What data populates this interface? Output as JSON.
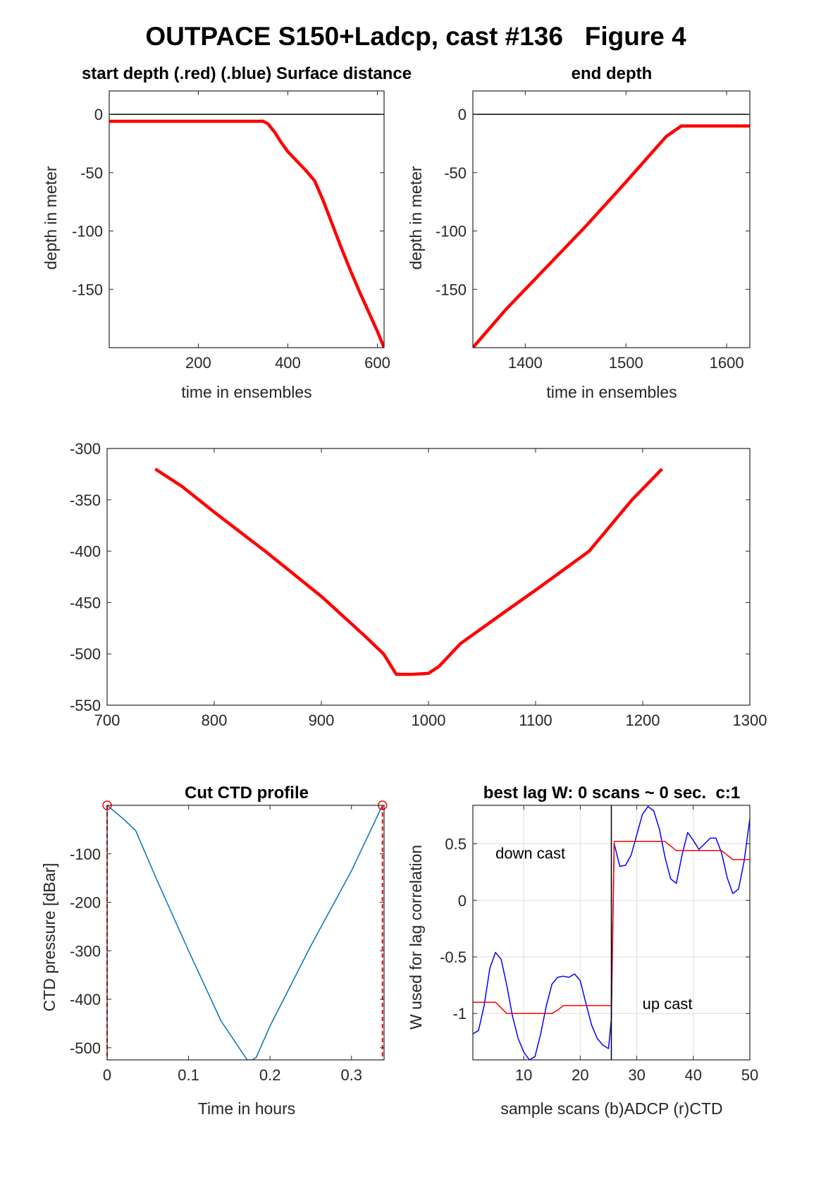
{
  "figure_title": "OUTPACE S150+Ladcp, cast #136   Figure 4",
  "chart_data": [
    {
      "id": "start",
      "type": "line",
      "title": "start depth (.red) (.blue) Surface distance",
      "xlabel": "time in ensembles",
      "ylabel": "depth in meter",
      "xlim": [
        1,
        615
      ],
      "ylim": [
        -200,
        20
      ],
      "xticks": [
        200,
        400,
        600
      ],
      "yticks": [
        0,
        -50,
        -100,
        -150
      ],
      "grid": false,
      "hlines": [
        {
          "y": 0,
          "color": "#000000"
        }
      ],
      "series": [
        {
          "color": "#ff0000",
          "x": [
            1,
            100,
            200,
            300,
            345,
            355,
            370,
            385,
            400,
            420,
            440,
            460,
            480,
            500,
            520,
            540,
            560,
            580,
            600,
            615
          ],
          "y": [
            -6,
            -6,
            -6,
            -6,
            -6,
            -8,
            -15,
            -24,
            -32,
            -40,
            -48,
            -57,
            -75,
            -95,
            -115,
            -134,
            -152,
            -169,
            -186,
            -200
          ]
        }
      ]
    },
    {
      "id": "end",
      "type": "line",
      "title": "end depth",
      "xlabel": "time in ensembles",
      "ylabel": "depth in meter",
      "xlim": [
        1348,
        1623
      ],
      "ylim": [
        -200,
        20
      ],
      "xticks": [
        1400,
        1500,
        1600
      ],
      "yticks": [
        0,
        -50,
        -100,
        -150
      ],
      "grid": false,
      "hlines": [
        {
          "y": 0,
          "color": "#000000"
        }
      ],
      "series": [
        {
          "color": "#ff0000",
          "x": [
            1348,
            1380,
            1420,
            1460,
            1500,
            1540,
            1555,
            1580,
            1623
          ],
          "y": [
            -200,
            -168,
            -132,
            -96,
            -58,
            -19,
            -10,
            -10,
            -10
          ]
        }
      ]
    },
    {
      "id": "middle",
      "type": "line",
      "title": "",
      "xlabel": "",
      "ylabel": "",
      "xlim": [
        700,
        1300
      ],
      "ylim": [
        -550,
        -300
      ],
      "xticks": [
        700,
        800,
        900,
        1000,
        1100,
        1200,
        1300
      ],
      "yticks": [
        -300,
        -350,
        -400,
        -450,
        -500,
        -550
      ],
      "grid": false,
      "series": [
        {
          "color": "#ff0000",
          "x": [
            745,
            770,
            800,
            850,
            900,
            940,
            958,
            970,
            985,
            1000,
            1010,
            1030,
            1070,
            1100,
            1150,
            1190,
            1218
          ],
          "y": [
            -320,
            -337,
            -362,
            -402,
            -444,
            -482,
            -500,
            -520,
            -520,
            -519,
            -512,
            -490,
            -460,
            -438,
            -400,
            -350,
            -320
          ]
        }
      ]
    },
    {
      "id": "ctd",
      "type": "line",
      "title": "Cut CTD profile",
      "xlabel": "Time in hours",
      "ylabel": "CTD pressure [dBar]",
      "xlim": [
        0,
        0.34
      ],
      "ylim": [
        -525,
        0
      ],
      "xticks": [
        0,
        0.1,
        0.2,
        0.3
      ],
      "yticks": [
        -100,
        -200,
        -300,
        -400,
        -500
      ],
      "grid": false,
      "series": [
        {
          "color": "#0072bd",
          "x": [
            0,
            0.02,
            0.035,
            0.06,
            0.1,
            0.14,
            0.172,
            0.178,
            0.183,
            0.2,
            0.25,
            0.3,
            0.338
          ],
          "y": [
            0,
            -28,
            -52,
            -150,
            -300,
            -445,
            -525,
            -525,
            -520,
            -455,
            -290,
            -135,
            0
          ]
        }
      ],
      "markers": [
        {
          "x": 0,
          "y": 0,
          "shape": "circle",
          "color": "#ff0000"
        },
        {
          "x": 0.338,
          "y": 0,
          "shape": "circle",
          "color": "#ff0000"
        }
      ],
      "vlines": [
        {
          "x": 0,
          "style": "dashed",
          "color": "#ff0000"
        },
        {
          "x": 0.338,
          "style": "dashed",
          "color": "#ff0000"
        }
      ]
    },
    {
      "id": "lag",
      "type": "line",
      "title": "best lag W: 0 scans ~ 0 sec.  c:1",
      "xlabel": "sample scans (b)ADCP (r)CTD",
      "ylabel": "W used for lag correlation",
      "xlim": [
        1,
        50
      ],
      "ylim": [
        -1.41,
        0.84
      ],
      "xticks": [
        10,
        20,
        30,
        40,
        50
      ],
      "yticks": [
        0.5,
        0,
        -0.5,
        -1
      ],
      "grid": true,
      "vlines": [
        {
          "x": 25.5,
          "style": "solid",
          "color": "#000000"
        }
      ],
      "annotations": [
        {
          "text": "down cast",
          "x": 5,
          "y": 0.37
        },
        {
          "text": "up cast",
          "x": 31,
          "y": -0.96
        }
      ],
      "series": [
        {
          "color": "#0000ff",
          "x": [
            1,
            2,
            3,
            4,
            5,
            6,
            7,
            8,
            9,
            10,
            11,
            12,
            13,
            14,
            15,
            16,
            17,
            18,
            19,
            20,
            21,
            22,
            23,
            24,
            25,
            25.5,
            26,
            27,
            28,
            29,
            30,
            31,
            32,
            33,
            34,
            35,
            36,
            37,
            38,
            39,
            40,
            41,
            42,
            43,
            44,
            45,
            46,
            47,
            48,
            49,
            50
          ],
          "y": [
            -1.18,
            -1.15,
            -0.93,
            -0.6,
            -0.46,
            -0.52,
            -0.75,
            -1.02,
            -1.22,
            -1.34,
            -1.41,
            -1.38,
            -1.18,
            -0.93,
            -0.74,
            -0.68,
            -0.67,
            -0.68,
            -0.65,
            -0.71,
            -0.91,
            -1.1,
            -1.22,
            -1.28,
            -1.31,
            -1.05,
            0.5,
            0.3,
            0.31,
            0.4,
            0.58,
            0.76,
            0.83,
            0.79,
            0.63,
            0.38,
            0.19,
            0.15,
            0.4,
            0.6,
            0.53,
            0.45,
            0.5,
            0.55,
            0.55,
            0.42,
            0.2,
            0.06,
            0.1,
            0.35,
            0.72
          ]
        },
        {
          "color": "#ff0000",
          "x": [
            1,
            5,
            6,
            7,
            15,
            16,
            17,
            25,
            25.5,
            26,
            35,
            36,
            37,
            45,
            46,
            47,
            50
          ],
          "y": [
            -0.9,
            -0.9,
            -0.95,
            -1.0,
            -1.0,
            -0.97,
            -0.93,
            -0.93,
            -0.93,
            0.52,
            0.52,
            0.48,
            0.44,
            0.44,
            0.4,
            0.36,
            0.36
          ]
        }
      ]
    }
  ]
}
